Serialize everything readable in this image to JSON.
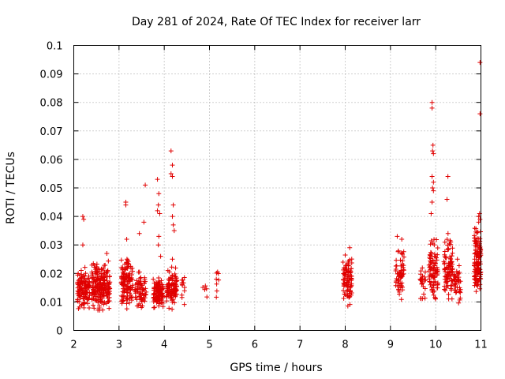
{
  "chart_data": {
    "type": "scatter",
    "title": "Day 281 of 2024, Rate Of TEC Index for receiver larr",
    "xlabel": "GPS time / hours",
    "ylabel": "ROTI / TECUs",
    "xlim": [
      2,
      11
    ],
    "ylim": [
      0,
      0.1
    ],
    "x_ticks": [
      "2",
      "3",
      "4",
      "5",
      "6",
      "7",
      "8",
      "9",
      "10",
      "11"
    ],
    "y_ticks": [
      "0",
      "0.01",
      "0.02",
      "0.03",
      "0.04",
      "0.05",
      "0.06",
      "0.07",
      "0.08",
      "0.09",
      "0.1"
    ],
    "grid": true,
    "marker": "+",
    "series_color": "#e00000",
    "clusters": [
      {
        "x_start": 2.08,
        "x_end": 2.35,
        "y_min": 0.005,
        "y_max": 0.024,
        "count": 130
      },
      {
        "x_start": 2.4,
        "x_end": 2.8,
        "y_min": 0.005,
        "y_max": 0.026,
        "count": 220
      },
      {
        "x_start": 3.05,
        "x_end": 3.3,
        "y_min": 0.005,
        "y_max": 0.027,
        "count": 130
      },
      {
        "x_start": 3.35,
        "x_end": 3.6,
        "y_min": 0.006,
        "y_max": 0.022,
        "count": 70
      },
      {
        "x_start": 3.75,
        "x_end": 3.98,
        "y_min": 0.005,
        "y_max": 0.022,
        "count": 110
      },
      {
        "x_start": 4.05,
        "x_end": 4.28,
        "y_min": 0.006,
        "y_max": 0.024,
        "count": 100
      },
      {
        "x_start": 4.38,
        "x_end": 4.45,
        "y_min": 0.007,
        "y_max": 0.024,
        "count": 12
      },
      {
        "x_start": 4.85,
        "x_end": 4.95,
        "y_min": 0.009,
        "y_max": 0.02,
        "count": 5
      },
      {
        "x_start": 5.15,
        "x_end": 5.22,
        "y_min": 0.009,
        "y_max": 0.026,
        "count": 8
      },
      {
        "x_start": 7.95,
        "x_end": 8.15,
        "y_min": 0.007,
        "y_max": 0.029,
        "count": 90
      },
      {
        "x_start": 9.1,
        "x_end": 9.3,
        "y_min": 0.008,
        "y_max": 0.032,
        "count": 60
      },
      {
        "x_start": 9.65,
        "x_end": 9.78,
        "y_min": 0.009,
        "y_max": 0.025,
        "count": 25
      },
      {
        "x_start": 9.85,
        "x_end": 10.05,
        "y_min": 0.007,
        "y_max": 0.035,
        "count": 90
      },
      {
        "x_start": 10.18,
        "x_end": 10.38,
        "y_min": 0.007,
        "y_max": 0.036,
        "count": 90
      },
      {
        "x_start": 10.4,
        "x_end": 10.55,
        "y_min": 0.006,
        "y_max": 0.025,
        "count": 40
      },
      {
        "x_start": 10.85,
        "x_end": 11.0,
        "y_min": 0.007,
        "y_max": 0.04,
        "count": 130
      }
    ],
    "outliers": [
      {
        "x": 2.2,
        "y": 0.04
      },
      {
        "x": 2.22,
        "y": 0.039
      },
      {
        "x": 2.2,
        "y": 0.03
      },
      {
        "x": 2.73,
        "y": 0.027
      },
      {
        "x": 3.15,
        "y": 0.045
      },
      {
        "x": 3.15,
        "y": 0.044
      },
      {
        "x": 3.17,
        "y": 0.032
      },
      {
        "x": 3.45,
        "y": 0.034
      },
      {
        "x": 3.55,
        "y": 0.038
      },
      {
        "x": 3.58,
        "y": 0.051
      },
      {
        "x": 3.85,
        "y": 0.053
      },
      {
        "x": 3.88,
        "y": 0.048
      },
      {
        "x": 3.87,
        "y": 0.044
      },
      {
        "x": 3.85,
        "y": 0.042
      },
      {
        "x": 3.9,
        "y": 0.041
      },
      {
        "x": 3.88,
        "y": 0.033
      },
      {
        "x": 3.87,
        "y": 0.03
      },
      {
        "x": 3.92,
        "y": 0.026
      },
      {
        "x": 4.15,
        "y": 0.063
      },
      {
        "x": 4.18,
        "y": 0.058
      },
      {
        "x": 4.18,
        "y": 0.054
      },
      {
        "x": 4.15,
        "y": 0.055
      },
      {
        "x": 4.2,
        "y": 0.044
      },
      {
        "x": 4.18,
        "y": 0.04
      },
      {
        "x": 4.2,
        "y": 0.037
      },
      {
        "x": 4.22,
        "y": 0.035
      },
      {
        "x": 4.18,
        "y": 0.025
      },
      {
        "x": 8.1,
        "y": 0.029
      },
      {
        "x": 9.15,
        "y": 0.033
      },
      {
        "x": 9.25,
        "y": 0.032
      },
      {
        "x": 9.92,
        "y": 0.08
      },
      {
        "x": 9.92,
        "y": 0.078
      },
      {
        "x": 9.94,
        "y": 0.065
      },
      {
        "x": 9.93,
        "y": 0.063
      },
      {
        "x": 9.95,
        "y": 0.062
      },
      {
        "x": 9.92,
        "y": 0.054
      },
      {
        "x": 9.95,
        "y": 0.052
      },
      {
        "x": 9.93,
        "y": 0.05
      },
      {
        "x": 9.95,
        "y": 0.049
      },
      {
        "x": 9.92,
        "y": 0.045
      },
      {
        "x": 9.9,
        "y": 0.041
      },
      {
        "x": 10.27,
        "y": 0.054
      },
      {
        "x": 10.25,
        "y": 0.046
      },
      {
        "x": 10.48,
        "y": 0.025
      },
      {
        "x": 10.98,
        "y": 0.094
      },
      {
        "x": 10.98,
        "y": 0.076
      },
      {
        "x": 10.97,
        "y": 0.041
      },
      {
        "x": 10.95,
        "y": 0.04
      },
      {
        "x": 10.98,
        "y": 0.039
      },
      {
        "x": 10.95,
        "y": 0.038
      }
    ]
  }
}
